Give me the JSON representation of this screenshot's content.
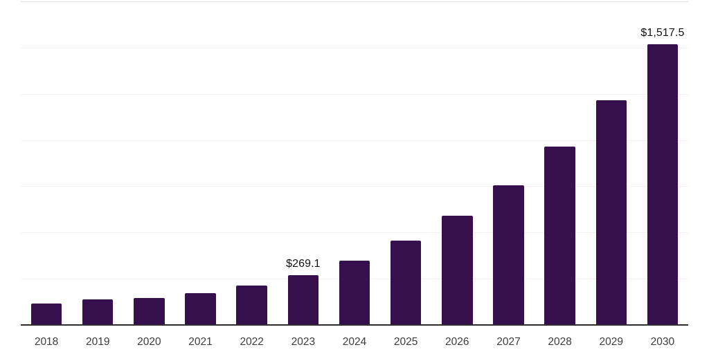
{
  "chart_data": {
    "type": "bar",
    "title": "",
    "xlabel": "",
    "ylabel": "",
    "categories": [
      "2018",
      "2019",
      "2020",
      "2021",
      "2022",
      "2023",
      "2024",
      "2025",
      "2026",
      "2027",
      "2028",
      "2029",
      "2030"
    ],
    "values": [
      115,
      138,
      146,
      173,
      212,
      269.1,
      346,
      458,
      590,
      755,
      965,
      1215,
      1517.5
    ],
    "value_labels": {
      "2023": "$269.1",
      "2030": "$1,517.5"
    },
    "ylim": [
      0,
      1750
    ],
    "gridline_step": 250,
    "grid": true,
    "legend_position": "none",
    "y_tick_labels_visible": false,
    "bar_color": "#35104D",
    "grid_color": "#f2f2f2",
    "top_border_color": "#e3e3e3",
    "axis_line_color": "#2e2e2e",
    "value_label_color": "#111111",
    "x_label_color": "#3d3d3d",
    "background_color": "#ffffff"
  }
}
